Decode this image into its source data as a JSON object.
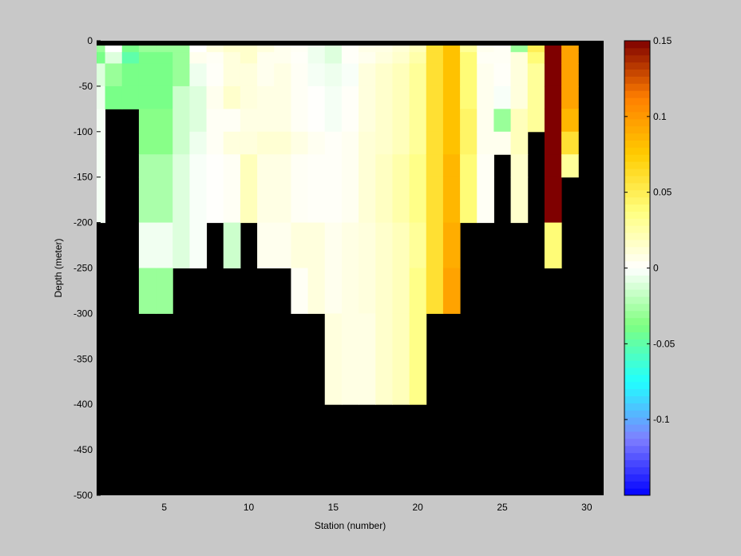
{
  "chart_data": {
    "type": "heatmap",
    "title": "",
    "xlabel": "Station (number)",
    "ylabel": "Depth (meter)",
    "xlim": [
      1,
      31
    ],
    "ylim": [
      -500,
      0
    ],
    "xticks": [
      5,
      10,
      15,
      20,
      25,
      30
    ],
    "yticks": [
      0,
      -50,
      -100,
      -150,
      -200,
      -250,
      -300,
      -350,
      -400,
      -450,
      -500
    ],
    "depth_bins": [
      0,
      -12.5,
      -25,
      -50,
      -75,
      -100,
      -125,
      -150,
      -200,
      -250,
      -300,
      -400,
      -500
    ],
    "stations": [
      1,
      2,
      3,
      4,
      5,
      6,
      7,
      8,
      9,
      10,
      11,
      12,
      13,
      14,
      15,
      16,
      17,
      18,
      19,
      20,
      21,
      22,
      23,
      24,
      25,
      26,
      27,
      28,
      29,
      30
    ],
    "values": [
      [
        -0.03,
        -0.04,
        -0.01,
        -0.005,
        -0.003,
        -0.003,
        -0.003,
        -0.003,
        null,
        null,
        null,
        null
      ],
      [
        0,
        -0.01,
        -0.03,
        -0.04,
        null,
        null,
        null,
        null,
        null,
        null,
        null,
        null
      ],
      [
        -0.04,
        -0.05,
        -0.04,
        -0.04,
        null,
        null,
        null,
        null,
        null,
        null,
        null,
        null
      ],
      [
        -0.03,
        -0.04,
        -0.04,
        -0.04,
        -0.035,
        -0.035,
        -0.025,
        -0.025,
        -0.004,
        -0.03,
        null,
        null
      ],
      [
        -0.03,
        -0.04,
        -0.04,
        -0.04,
        -0.035,
        -0.035,
        -0.025,
        -0.025,
        -0.004,
        -0.03,
        null,
        null
      ],
      [
        -0.03,
        -0.03,
        -0.03,
        -0.015,
        -0.015,
        -0.015,
        -0.01,
        -0.01,
        -0.01,
        null,
        null,
        null
      ],
      [
        0,
        0.005,
        -0.005,
        -0.01,
        -0.01,
        -0.005,
        -0.002,
        -0.002,
        -0.002,
        null,
        null,
        null
      ],
      [
        0.01,
        0.003,
        0.002,
        0.005,
        0.003,
        0.003,
        0.001,
        0.001,
        null,
        null,
        null,
        null
      ],
      [
        0.015,
        0.01,
        0.01,
        0.015,
        0.003,
        0.01,
        0.003,
        0.003,
        -0.015,
        null,
        null,
        null
      ],
      [
        0.015,
        0.015,
        0.01,
        0.01,
        0.008,
        0.01,
        0.02,
        0.02,
        null,
        null,
        null,
        null
      ],
      [
        0.01,
        0.005,
        0.005,
        0.008,
        0.008,
        0.013,
        0.008,
        0.008,
        0.005,
        null,
        null,
        null
      ],
      [
        0.005,
        0.005,
        0.008,
        0.008,
        0.008,
        0.013,
        0.008,
        0.008,
        0.005,
        null,
        null,
        null
      ],
      [
        0.003,
        0.002,
        0.003,
        0.003,
        0.003,
        0.008,
        0.003,
        0.003,
        0.01,
        0.003,
        null,
        null
      ],
      [
        -0.005,
        -0.005,
        -0.003,
        0.001,
        0.001,
        0.004,
        0.002,
        0.002,
        0.01,
        0.01,
        null,
        null
      ],
      [
        -0.01,
        -0.01,
        -0.005,
        -0.003,
        -0.003,
        0.002,
        0.002,
        0.002,
        0.005,
        0.005,
        0.01,
        null
      ],
      [
        0.002,
        0.002,
        -0.002,
        0.002,
        0.002,
        0.004,
        0.004,
        0.004,
        0.008,
        0.008,
        0.008,
        null
      ],
      [
        0.007,
        0.005,
        0.01,
        0.01,
        0.01,
        0.012,
        0.012,
        0.012,
        0.01,
        0.01,
        0.008,
        null
      ],
      [
        0.008,
        0.01,
        0.015,
        0.015,
        0.015,
        0.015,
        0.018,
        0.018,
        0.015,
        0.015,
        0.015,
        null
      ],
      [
        0.012,
        0.015,
        0.02,
        0.02,
        0.02,
        0.02,
        0.025,
        0.025,
        0.02,
        0.02,
        0.02,
        null
      ],
      [
        0.02,
        0.025,
        0.03,
        0.03,
        0.03,
        0.03,
        0.035,
        0.035,
        0.03,
        0.035,
        0.035,
        null
      ],
      [
        0.06,
        0.06,
        0.06,
        0.06,
        0.06,
        0.06,
        0.06,
        0.06,
        0.06,
        0.06,
        null,
        null
      ],
      [
        0.08,
        0.08,
        0.08,
        0.08,
        0.08,
        0.08,
        0.085,
        0.085,
        0.09,
        0.095,
        null,
        null
      ],
      [
        0.03,
        0.04,
        0.04,
        0.04,
        0.045,
        0.045,
        0.04,
        0.04,
        null,
        null,
        null,
        null
      ],
      [
        0.005,
        0.003,
        0.005,
        0.005,
        0.005,
        0.005,
        0.003,
        0.003,
        null,
        null,
        null,
        null
      ],
      [
        0.003,
        0.003,
        0.002,
        -0.002,
        -0.03,
        0.005,
        null,
        null,
        null,
        null,
        null,
        null
      ],
      [
        -0.03,
        0.01,
        0.01,
        0.01,
        0.02,
        0.02,
        0.015,
        0.015,
        null,
        null,
        null,
        null
      ],
      [
        0.05,
        0.04,
        0.03,
        0.03,
        0.03,
        null,
        null,
        null,
        null,
        null,
        null,
        null
      ],
      [
        0.15,
        0.15,
        0.15,
        0.15,
        0.15,
        0.15,
        0.15,
        0.15,
        0.04,
        null,
        null,
        null
      ],
      [
        0.095,
        0.095,
        0.095,
        0.095,
        0.085,
        0.06,
        0.03,
        null,
        null,
        null,
        null,
        null
      ],
      [
        null,
        null,
        null,
        null,
        null,
        null,
        null,
        null,
        null,
        null,
        null,
        null
      ]
    ],
    "mask_color": "#000000",
    "grid": false,
    "colorbar": {
      "clim": [
        -0.15,
        0.15
      ],
      "ticks": [
        0.15,
        0.1,
        0.05,
        0,
        -0.05,
        -0.1
      ],
      "tick_labels": [
        "0.15",
        "0.1",
        "0.05",
        "0",
        "-0.05",
        "-0.1"
      ],
      "colors": [
        "#0000ff",
        "#7f7fff",
        "#20ffff",
        "#7fff7f",
        "#ffffff",
        "#ffff7f",
        "#ffcc00",
        "#ff7f00",
        "#7f0000"
      ],
      "placement": "right"
    },
    "background_color": "#c8c8c8"
  }
}
